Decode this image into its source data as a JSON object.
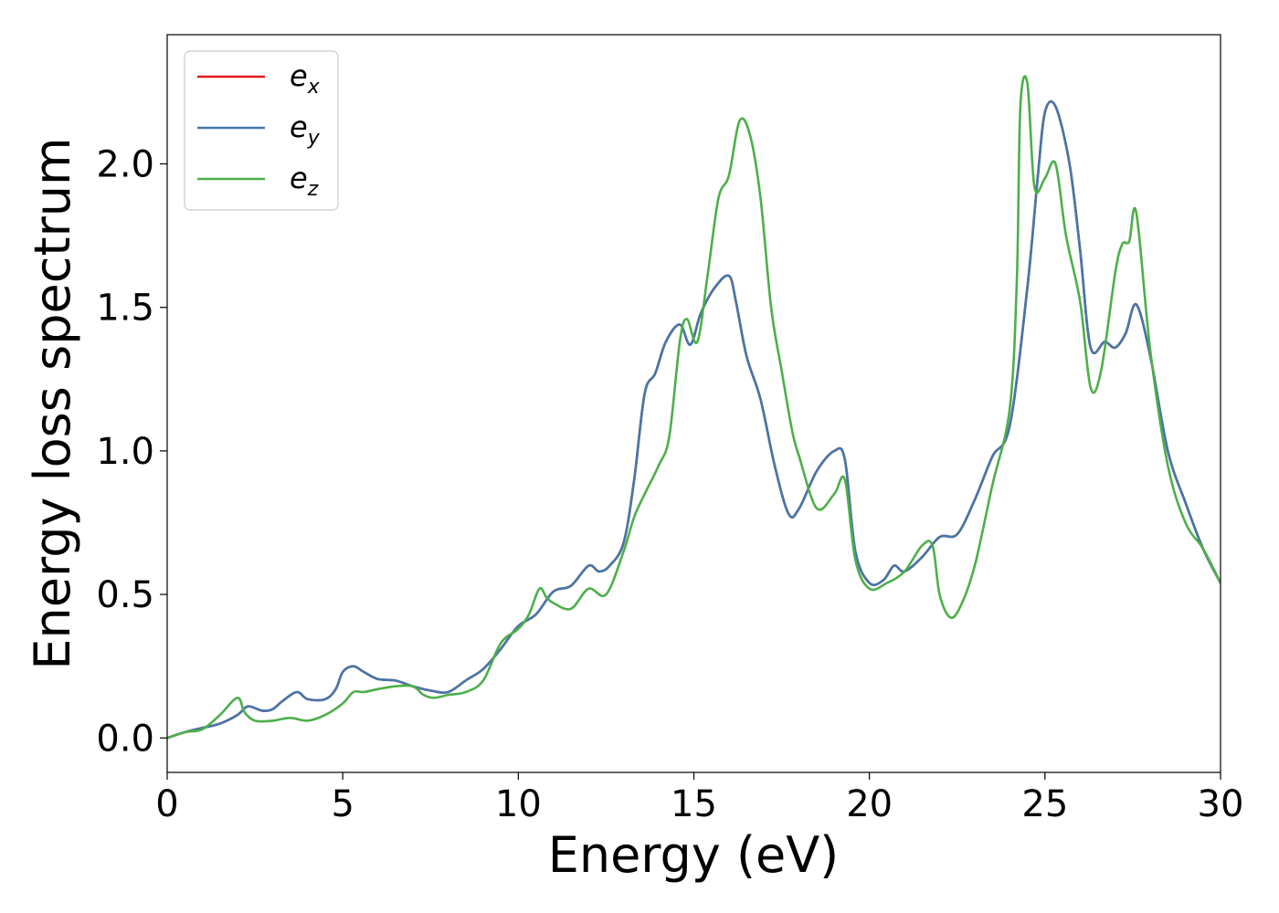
{
  "chart_data": {
    "type": "line",
    "xlabel": "Energy (eV)",
    "ylabel": "Energy loss spectrum",
    "xlim": [
      0,
      30
    ],
    "ylim": [
      -0.12,
      2.45
    ],
    "xticks": [
      0,
      5,
      10,
      15,
      20,
      25,
      30
    ],
    "yticks": [
      0.0,
      0.5,
      1.0,
      1.5,
      2.0
    ],
    "xtick_labels": [
      "0",
      "5",
      "10",
      "15",
      "20",
      "25",
      "30"
    ],
    "ytick_labels": [
      "0.0",
      "0.5",
      "1.0",
      "1.5",
      "2.0"
    ],
    "grid": false,
    "legend_position": "top-left",
    "series": [
      {
        "name": "e",
        "sub": "x",
        "color": "#e41a1c",
        "x": [
          0,
          0.5,
          1,
          1.5,
          2,
          2.3,
          2.7,
          3,
          3.3,
          3.7,
          4,
          4.5,
          4.8,
          5,
          5.3,
          5.6,
          6,
          6.5,
          7,
          7.5,
          8,
          8.5,
          9,
          9.5,
          10,
          10.5,
          11,
          11.5,
          12,
          12.3,
          12.6,
          13,
          13.3,
          13.6,
          13.9,
          14.2,
          14.6,
          14.9,
          15.2,
          15.6,
          16,
          16.2,
          16.5,
          16.9,
          17.3,
          17.7,
          18,
          18.5,
          19,
          19.3,
          19.6,
          20,
          20.4,
          20.7,
          21,
          21.5,
          22,
          22.5,
          23,
          23.5,
          24,
          24.5,
          24.8,
          25,
          25.3,
          25.7,
          26,
          26.3,
          26.7,
          27,
          27.3,
          27.6,
          28,
          28.5,
          29,
          29.5,
          30
        ],
        "y": [
          0.0,
          0.02,
          0.035,
          0.05,
          0.08,
          0.11,
          0.095,
          0.1,
          0.13,
          0.16,
          0.135,
          0.135,
          0.17,
          0.23,
          0.25,
          0.23,
          0.205,
          0.2,
          0.18,
          0.165,
          0.16,
          0.2,
          0.24,
          0.31,
          0.39,
          0.43,
          0.51,
          0.53,
          0.6,
          0.58,
          0.6,
          0.68,
          0.9,
          1.2,
          1.27,
          1.38,
          1.44,
          1.37,
          1.48,
          1.57,
          1.61,
          1.52,
          1.33,
          1.18,
          0.95,
          0.78,
          0.8,
          0.93,
          1.0,
          0.97,
          0.65,
          0.54,
          0.55,
          0.6,
          0.58,
          0.63,
          0.7,
          0.71,
          0.83,
          0.98,
          1.09,
          1.57,
          1.96,
          2.18,
          2.2,
          2.0,
          1.7,
          1.36,
          1.38,
          1.36,
          1.41,
          1.51,
          1.33,
          1.0,
          0.82,
          0.66,
          0.54
        ]
      },
      {
        "name": "e",
        "sub": "y",
        "color": "#4477aa",
        "x": [
          0,
          0.5,
          1,
          1.5,
          2,
          2.3,
          2.7,
          3,
          3.3,
          3.7,
          4,
          4.5,
          4.8,
          5,
          5.3,
          5.6,
          6,
          6.5,
          7,
          7.5,
          8,
          8.5,
          9,
          9.5,
          10,
          10.5,
          11,
          11.5,
          12,
          12.3,
          12.6,
          13,
          13.3,
          13.6,
          13.9,
          14.2,
          14.6,
          14.9,
          15.2,
          15.6,
          16,
          16.2,
          16.5,
          16.9,
          17.3,
          17.7,
          18,
          18.5,
          19,
          19.3,
          19.6,
          20,
          20.4,
          20.7,
          21,
          21.5,
          22,
          22.5,
          23,
          23.5,
          24,
          24.5,
          24.8,
          25,
          25.3,
          25.7,
          26,
          26.3,
          26.7,
          27,
          27.3,
          27.6,
          28,
          28.5,
          29,
          29.5,
          30
        ],
        "y": [
          0.0,
          0.02,
          0.035,
          0.05,
          0.08,
          0.11,
          0.095,
          0.1,
          0.13,
          0.16,
          0.135,
          0.135,
          0.17,
          0.23,
          0.25,
          0.23,
          0.205,
          0.2,
          0.18,
          0.165,
          0.16,
          0.2,
          0.24,
          0.31,
          0.39,
          0.43,
          0.51,
          0.53,
          0.6,
          0.58,
          0.6,
          0.68,
          0.9,
          1.2,
          1.27,
          1.38,
          1.44,
          1.37,
          1.48,
          1.57,
          1.61,
          1.52,
          1.33,
          1.18,
          0.95,
          0.78,
          0.8,
          0.93,
          1.0,
          0.97,
          0.65,
          0.54,
          0.55,
          0.6,
          0.58,
          0.63,
          0.7,
          0.71,
          0.83,
          0.98,
          1.09,
          1.57,
          1.96,
          2.18,
          2.2,
          2.0,
          1.7,
          1.36,
          1.38,
          1.36,
          1.41,
          1.51,
          1.33,
          1.0,
          0.82,
          0.66,
          0.54
        ]
      },
      {
        "name": "e",
        "sub": "z",
        "color": "#4daf4a",
        "x": [
          0,
          0.5,
          1,
          1.5,
          2,
          2.2,
          2.5,
          3,
          3.5,
          4,
          4.5,
          5,
          5.3,
          5.6,
          6,
          6.5,
          7,
          7.3,
          7.6,
          8,
          8.5,
          9,
          9.5,
          10,
          10.3,
          10.6,
          10.8,
          11,
          11.5,
          12,
          12.5,
          13,
          13.3,
          13.6,
          14,
          14.3,
          14.6,
          14.8,
          15.1,
          15.4,
          15.7,
          16,
          16.3,
          16.6,
          16.9,
          17.2,
          17.5,
          17.8,
          18,
          18.5,
          19,
          19.3,
          19.6,
          20,
          20.5,
          21,
          21.5,
          21.8,
          22,
          22.3,
          22.6,
          23,
          23.5,
          24,
          24.2,
          24.3,
          24.5,
          24.7,
          25,
          25.3,
          25.6,
          26,
          26.3,
          26.6,
          27,
          27.2,
          27.4,
          27.6,
          28,
          28.5,
          29,
          29.5,
          30
        ],
        "y": [
          0.0,
          0.02,
          0.03,
          0.08,
          0.14,
          0.09,
          0.06,
          0.06,
          0.07,
          0.06,
          0.08,
          0.12,
          0.16,
          0.16,
          0.17,
          0.18,
          0.18,
          0.15,
          0.14,
          0.15,
          0.16,
          0.2,
          0.33,
          0.38,
          0.43,
          0.52,
          0.49,
          0.47,
          0.45,
          0.52,
          0.5,
          0.65,
          0.77,
          0.85,
          0.95,
          1.05,
          1.38,
          1.46,
          1.38,
          1.62,
          1.88,
          1.96,
          2.15,
          2.1,
          1.88,
          1.5,
          1.28,
          1.07,
          0.98,
          0.8,
          0.85,
          0.9,
          0.62,
          0.52,
          0.54,
          0.58,
          0.67,
          0.67,
          0.5,
          0.42,
          0.46,
          0.6,
          0.88,
          1.15,
          1.6,
          2.2,
          2.28,
          1.92,
          1.95,
          2.0,
          1.75,
          1.52,
          1.22,
          1.28,
          1.62,
          1.72,
          1.73,
          1.83,
          1.35,
          0.95,
          0.75,
          0.66,
          0.54
        ]
      }
    ]
  }
}
